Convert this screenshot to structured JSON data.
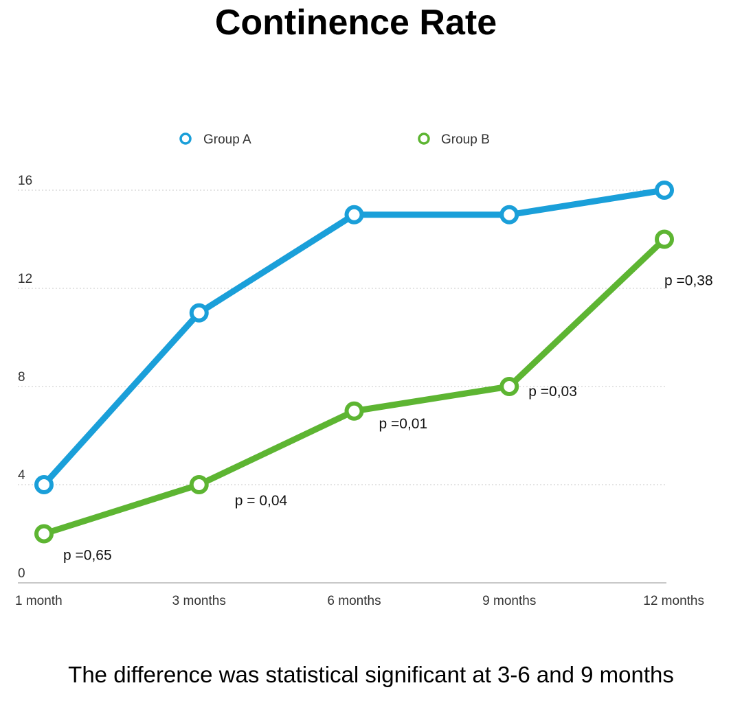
{
  "chart_data": {
    "type": "line",
    "title": "Continence Rate",
    "caption": "The difference was statistical significant at 3-6 and 9 months",
    "categories": [
      "1 month",
      "3 months",
      "6 months",
      "9 months",
      "12 months"
    ],
    "series": [
      {
        "name": "Group A",
        "color": "#1a9fd9",
        "values": [
          4,
          11,
          15,
          15,
          16
        ]
      },
      {
        "name": "Group B",
        "color": "#5db532",
        "values": [
          2,
          4,
          7,
          8,
          14
        ]
      }
    ],
    "yticks": [
      0,
      4,
      8,
      12,
      16
    ],
    "ylim": [
      0,
      16
    ],
    "grid": true,
    "legend": "top-center",
    "annotations": [
      {
        "text": "p =0,65",
        "category": "1 month"
      },
      {
        "text": "p = 0,04",
        "category": "3 months"
      },
      {
        "text": "p =0,01",
        "category": "6 months"
      },
      {
        "text": "p =0,03",
        "category": "9 months"
      },
      {
        "text": "p =0,38",
        "category": "12 months"
      }
    ]
  }
}
